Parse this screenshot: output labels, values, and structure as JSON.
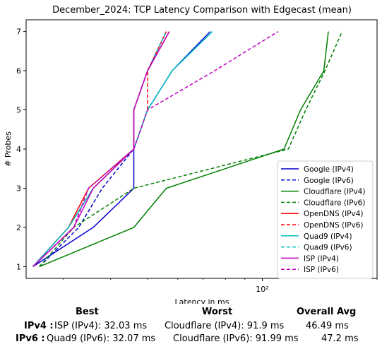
{
  "chart_data": {
    "type": "line",
    "title": "December_2024: TCP Latency Comparison with Edgecast (mean)",
    "xlabel": "Latency in ms",
    "ylabel": "# Probes",
    "x_scale": "log",
    "xlim": [
      24,
      200
    ],
    "ylim": [
      0.7,
      7.3
    ],
    "x_ticks": [
      {
        "value": 100,
        "label": "10²"
      }
    ],
    "y_ticks": [
      1,
      2,
      3,
      4,
      5,
      6,
      7
    ],
    "grid": false,
    "legend_position": "bottom-right",
    "series": [
      {
        "name": "Google (IPv4)",
        "color": "#0000cc",
        "dash": "solid",
        "points": [
          [
            25,
            1
          ],
          [
            36,
            2
          ],
          [
            46,
            3
          ],
          [
            46,
            4
          ],
          [
            50,
            5
          ],
          [
            58,
            6
          ],
          [
            73,
            7
          ]
        ]
      },
      {
        "name": "Google (IPv6)",
        "color": "#0000cc",
        "dash": "dashed",
        "points": [
          [
            26,
            1
          ],
          [
            33,
            2
          ],
          [
            38,
            3
          ],
          [
            46,
            4
          ],
          [
            46,
            5
          ],
          [
            50,
            6
          ],
          [
            56,
            7
          ]
        ]
      },
      {
        "name": "Cloudflare (IPv4)",
        "color": "#008000",
        "dash": "solid",
        "points": [
          [
            26,
            1
          ],
          [
            46,
            2
          ],
          [
            56,
            3
          ],
          [
            114,
            4
          ],
          [
            126,
            5
          ],
          [
            145,
            6
          ],
          [
            149,
            7
          ]
        ]
      },
      {
        "name": "Cloudflare (IPv6)",
        "color": "#008000",
        "dash": "dashed",
        "points": [
          [
            26,
            1
          ],
          [
            32,
            2
          ],
          [
            46,
            3
          ],
          [
            117,
            4
          ],
          [
            130,
            5
          ],
          [
            146,
            6
          ],
          [
            162,
            7
          ]
        ]
      },
      {
        "name": "OpenDNS (IPv4)",
        "color": "#ff0000",
        "dash": "solid",
        "points": [
          [
            25,
            1
          ],
          [
            31,
            2
          ],
          [
            35,
            3
          ],
          [
            46,
            4
          ],
          [
            46,
            5
          ],
          [
            50,
            6
          ],
          [
            57,
            7
          ]
        ]
      },
      {
        "name": "OpenDNS (IPv6)",
        "color": "#ff0000",
        "dash": "dashed",
        "points": [
          [
            25,
            1
          ],
          [
            31,
            2
          ],
          [
            36,
            3
          ],
          [
            46,
            4
          ],
          [
            50,
            5
          ],
          [
            50,
            6
          ],
          [
            56,
            7
          ]
        ]
      },
      {
        "name": "Quad9 (IPv4)",
        "color": "#00bfbf",
        "dash": "solid",
        "points": [
          [
            25,
            1
          ],
          [
            31,
            2
          ],
          [
            36,
            3
          ],
          [
            46,
            4
          ],
          [
            50,
            5
          ],
          [
            58,
            6
          ],
          [
            74,
            7
          ]
        ]
      },
      {
        "name": "Quad9 (IPv6)",
        "color": "#00bfbf",
        "dash": "dashed",
        "points": [
          [
            25,
            1
          ],
          [
            32,
            2
          ],
          [
            35,
            3
          ],
          [
            46,
            4
          ],
          [
            46,
            5
          ],
          [
            50,
            6
          ],
          [
            56,
            7
          ]
        ]
      },
      {
        "name": "ISP (IPv4)",
        "color": "#bf00bf",
        "dash": "solid",
        "points": [
          [
            25,
            1
          ],
          [
            32,
            2
          ],
          [
            36,
            3
          ],
          [
            46,
            4
          ],
          [
            46,
            5
          ],
          [
            50,
            6
          ],
          [
            57,
            7
          ]
        ]
      },
      {
        "name": "ISP (IPv6)",
        "color": "#bf00bf",
        "dash": "dashed",
        "points": [
          [
            25,
            1
          ],
          [
            32,
            2
          ],
          [
            35,
            3
          ],
          [
            46,
            4
          ],
          [
            50,
            5
          ],
          [
            75,
            6
          ],
          [
            110,
            7
          ]
        ]
      }
    ]
  },
  "summary": {
    "headers": {
      "best": "Best",
      "worst": "Worst",
      "overall": "Overall Avg"
    },
    "rows": [
      {
        "label": "IPv4 :",
        "best": "ISP (IPv4): 32.03 ms",
        "worst": "Cloudflare (IPv4): 91.9 ms",
        "overall": "46.49 ms"
      },
      {
        "label": "IPv6 :",
        "best": "Quad9 (IPv6): 32.07 ms",
        "worst": "Cloudflare (IPv6): 91.99 ms",
        "overall": "47.2 ms"
      }
    ]
  }
}
